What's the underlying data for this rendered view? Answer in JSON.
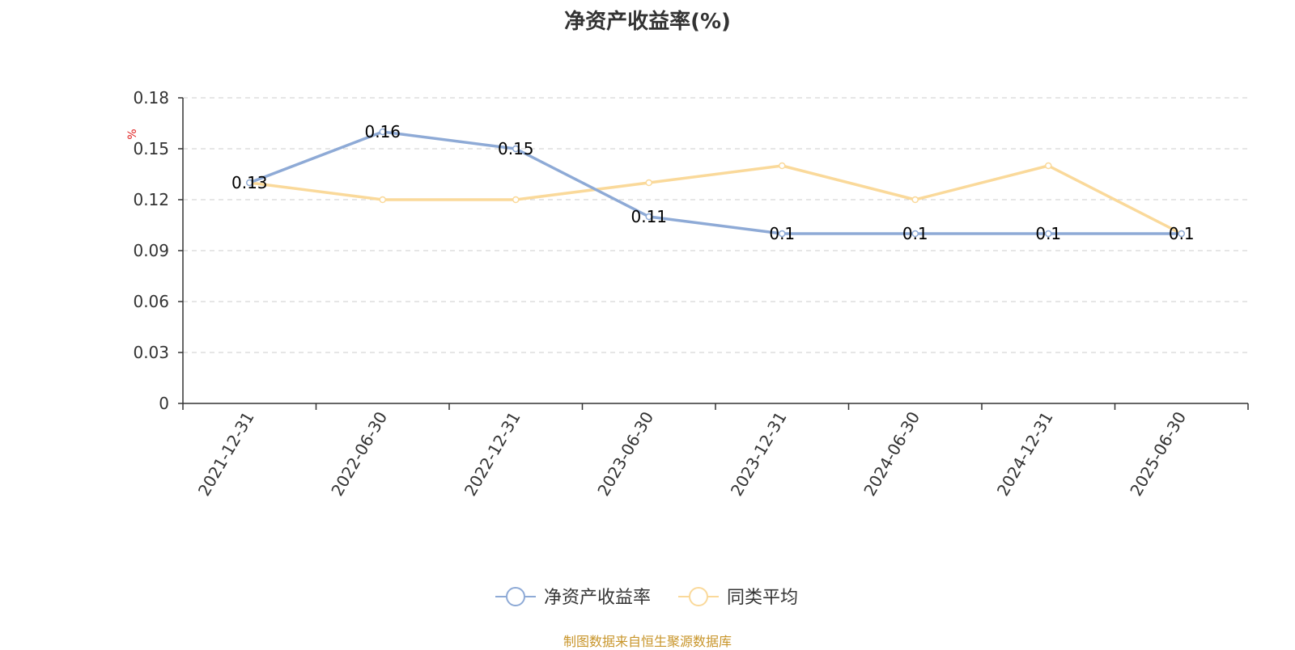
{
  "chart_data": {
    "type": "line",
    "title": "净资产收益率(%)",
    "ylabel": "%",
    "categories": [
      "2021-12-31",
      "2022-06-30",
      "2022-12-31",
      "2023-06-30",
      "2023-12-31",
      "2024-06-30",
      "2024-12-31",
      "2025-06-30"
    ],
    "series": [
      {
        "name": "净资产收益率",
        "values": [
          0.13,
          0.16,
          0.15,
          0.11,
          0.1,
          0.1,
          0.1,
          0.1
        ],
        "color": "#8eaad6",
        "show_labels": true
      },
      {
        "name": "同类平均",
        "values": [
          0.13,
          0.12,
          0.12,
          0.13,
          0.14,
          0.12,
          0.14,
          0.1
        ],
        "color": "#fad99a",
        "show_labels": false
      }
    ],
    "ylim": [
      0,
      0.18
    ],
    "yticks": [
      "0",
      "0.03",
      "0.06",
      "0.09",
      "0.12",
      "0.15",
      "0.18"
    ],
    "grid": true,
    "legend_position": "bottom-center",
    "unit_color": "#e02020"
  },
  "footer": {
    "source": "制图数据来自恒生聚源数据库"
  }
}
